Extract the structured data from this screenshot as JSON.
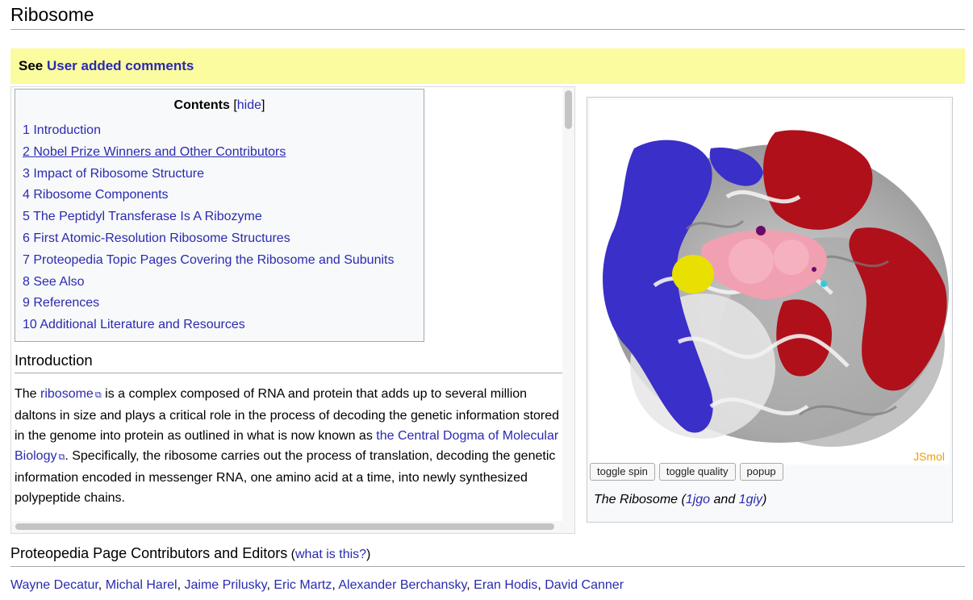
{
  "page": {
    "title": "Ribosome"
  },
  "notice": {
    "prefix": "See",
    "link": "User added comments"
  },
  "toc": {
    "title": "Contents",
    "bracket_open": "[",
    "hide_label": "hide",
    "bracket_close": "]",
    "items": [
      {
        "num": "1",
        "label": "Introduction"
      },
      {
        "num": "2",
        "label": "Nobel Prize Winners and Other Contributors"
      },
      {
        "num": "3",
        "label": "Impact of Ribosome Structure"
      },
      {
        "num": "4",
        "label": "Ribosome Components"
      },
      {
        "num": "5",
        "label": "The Peptidyl Transferase Is A Ribozyme"
      },
      {
        "num": "6",
        "label": "First Atomic-Resolution Ribosome Structures"
      },
      {
        "num": "7",
        "label": "Proteopedia Topic Pages Covering the Ribosome and Subunits"
      },
      {
        "num": "8",
        "label": "See Also"
      },
      {
        "num": "9",
        "label": "References"
      },
      {
        "num": "10",
        "label": "Additional Literature and Resources"
      }
    ]
  },
  "intro": {
    "heading": "Introduction",
    "t1": "The ",
    "link1": "ribosome",
    "t2": " is a complex composed of RNA and protein that adds up to several million daltons in size and plays a critical role in the process of decoding the genetic information stored in the genome into protein as outlined in what is now known as ",
    "link2": "the Central Dogma of Molecular Biology",
    "t3": ". Specifically, the ribosome carries out the process of translation, decoding the genetic information encoded in messenger RNA, one amino acid at a time, into newly synthesized polypeptide chains."
  },
  "jsmol": {
    "label": "JSmol",
    "buttons": {
      "spin": "toggle spin",
      "quality": "toggle quality",
      "popup": "popup"
    },
    "caption": {
      "t1": "The Ribosome (",
      "link1": "1jgo",
      "t2": " and ",
      "link2": "1giy",
      "t3": ")"
    },
    "colors": {
      "rna": "#bdbdbd",
      "protein_blue": "#3a2fc8",
      "protein_red": "#b0101a",
      "trna_pink": "#f0a0b0",
      "yellow": "#e8e000"
    }
  },
  "contributors": {
    "heading": "Proteopedia Page Contributors and Editors",
    "paren_open": " (",
    "what_link": "what is this?",
    "paren_close": ")",
    "names": [
      "Wayne Decatur",
      "Michal Harel",
      "Jaime Prilusky",
      "Eric Martz",
      "Alexander Berchansky",
      "Eran Hodis",
      "David Canner"
    ]
  },
  "theme": {
    "link_color": "#2a2ab0",
    "notice_bg": "#fbfba0",
    "jsmol_orange": "#f0a000"
  }
}
